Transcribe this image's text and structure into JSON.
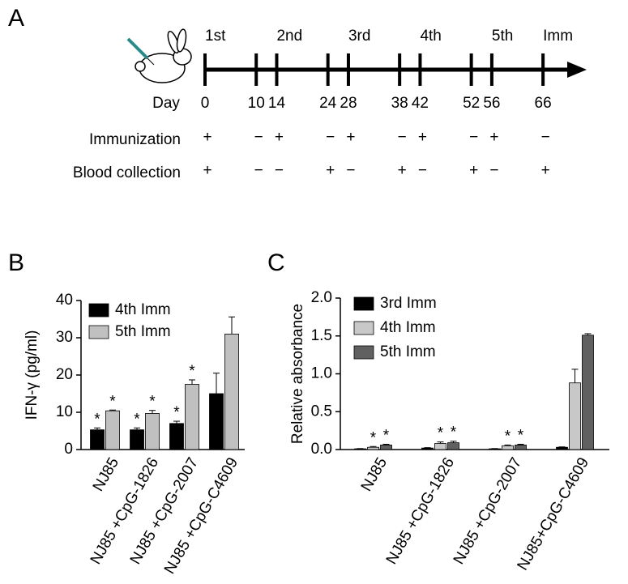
{
  "panels": [
    "A",
    "B",
    "C"
  ],
  "timeline": {
    "day_label": "Day",
    "days": [
      0,
      10,
      14,
      24,
      28,
      38,
      42,
      52,
      56,
      66
    ],
    "events": [
      {
        "label": "1st",
        "day": 0
      },
      {
        "label": "2nd",
        "day": 14
      },
      {
        "label": "3rd",
        "day": 28
      },
      {
        "label": "4th",
        "day": 42
      },
      {
        "label": "5th",
        "day": 56
      },
      {
        "label": "Imm",
        "day": 66
      }
    ],
    "rows": [
      {
        "label": "Immunization",
        "marks": [
          "+",
          "−",
          "+",
          "−",
          "+",
          "−",
          "+",
          "−",
          "+",
          "−"
        ]
      },
      {
        "label": "Blood collection",
        "marks": [
          "+",
          "−",
          "−",
          "+",
          "−",
          "+",
          "−",
          "+",
          "−",
          "+"
        ]
      }
    ]
  },
  "chart_data": [
    {
      "type": "bar",
      "y_label": "IFN-γ (pg/ml)",
      "categories": [
        "NJ85",
        "NJ85 +CpG-1826",
        "NJ85 +CpG-2007",
        "NJ85 +CpG-C4609"
      ],
      "series": [
        {
          "name": "4th Imm",
          "color": "#000000",
          "values": [
            5.3,
            5.3,
            7,
            15
          ],
          "errors": [
            0.5,
            0.5,
            0.6,
            5.5
          ],
          "significance": [
            "*",
            "*",
            "*",
            null
          ]
        },
        {
          "name": "5th Imm",
          "color": "#c0c0c0",
          "values": [
            10.4,
            9.7,
            17.5,
            31
          ],
          "errors": [
            0.2,
            0.8,
            1.2,
            4.6
          ],
          "significance": [
            "*",
            "*",
            "*",
            null
          ]
        }
      ],
      "ylim": [
        0,
        40
      ],
      "yticks": [
        0,
        10,
        20,
        30,
        40
      ],
      "legend": "upper-left"
    },
    {
      "type": "bar",
      "y_label": "Relative absorbance",
      "categories": [
        "NJ85",
        "NJ85 +CpG-1826",
        "NJ85 +CpG-2007",
        "NJ85+CpG-C4609"
      ],
      "series": [
        {
          "name": "3rd Imm",
          "color": "#000000",
          "values": [
            0.01,
            0.02,
            0.01,
            0.03
          ],
          "errors": [
            0.003,
            0.005,
            0.003,
            0.005
          ],
          "significance": [
            null,
            null,
            null,
            null
          ]
        },
        {
          "name": "4th Imm",
          "color": "#c8c8c8",
          "values": [
            0.03,
            0.08,
            0.05,
            0.88
          ],
          "errors": [
            0.01,
            0.02,
            0.01,
            0.18
          ],
          "significance": [
            "*",
            "*",
            "*",
            null
          ]
        },
        {
          "name": "5th Imm",
          "color": "#606060",
          "values": [
            0.06,
            0.09,
            0.06,
            1.51
          ],
          "errors": [
            0.01,
            0.02,
            0.01,
            0.02
          ],
          "significance": [
            "*",
            "*",
            "*",
            null
          ]
        }
      ],
      "ylim": [
        0,
        2
      ],
      "yticks": [
        {
          "value": 0,
          "label": "0.0"
        },
        0.5,
        {
          "value": 1,
          "label": "1.0"
        },
        1.5,
        {
          "value": 2,
          "label": "2.0"
        }
      ],
      "legend": "upper-left"
    }
  ]
}
